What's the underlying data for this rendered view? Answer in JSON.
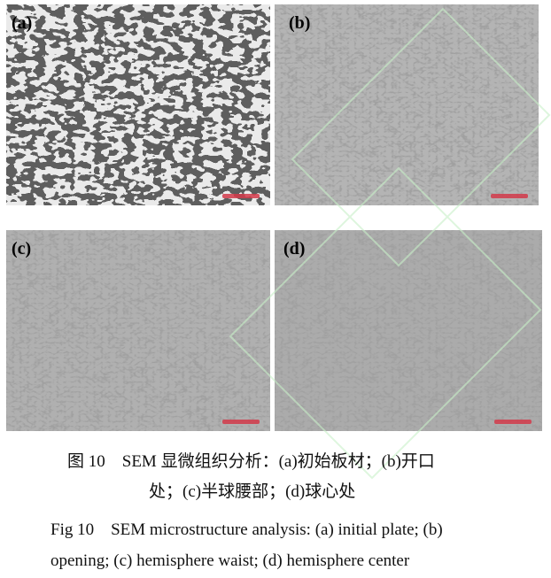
{
  "figure": {
    "panels": [
      {
        "label": "(a)",
        "texture": "coarse-equiaxed"
      },
      {
        "label": "(b)",
        "texture": "fine-lamellar"
      },
      {
        "label": "(c)",
        "texture": "fine-lamellar"
      },
      {
        "label": "(d)",
        "texture": "fine-lamellar"
      }
    ],
    "scale_bar_color": "#d23a4a"
  },
  "caption_cn": {
    "line1": "图 10　SEM 显微组织分析：(a)初始板材；(b)开口",
    "line2": "处；(c)半球腰部；(d)球心处"
  },
  "caption_en": {
    "line1": "Fig 10　SEM microstructure analysis: (a) initial plate; (b)",
    "line2": "opening; (c) hemisphere waist; (d) hemisphere center"
  }
}
